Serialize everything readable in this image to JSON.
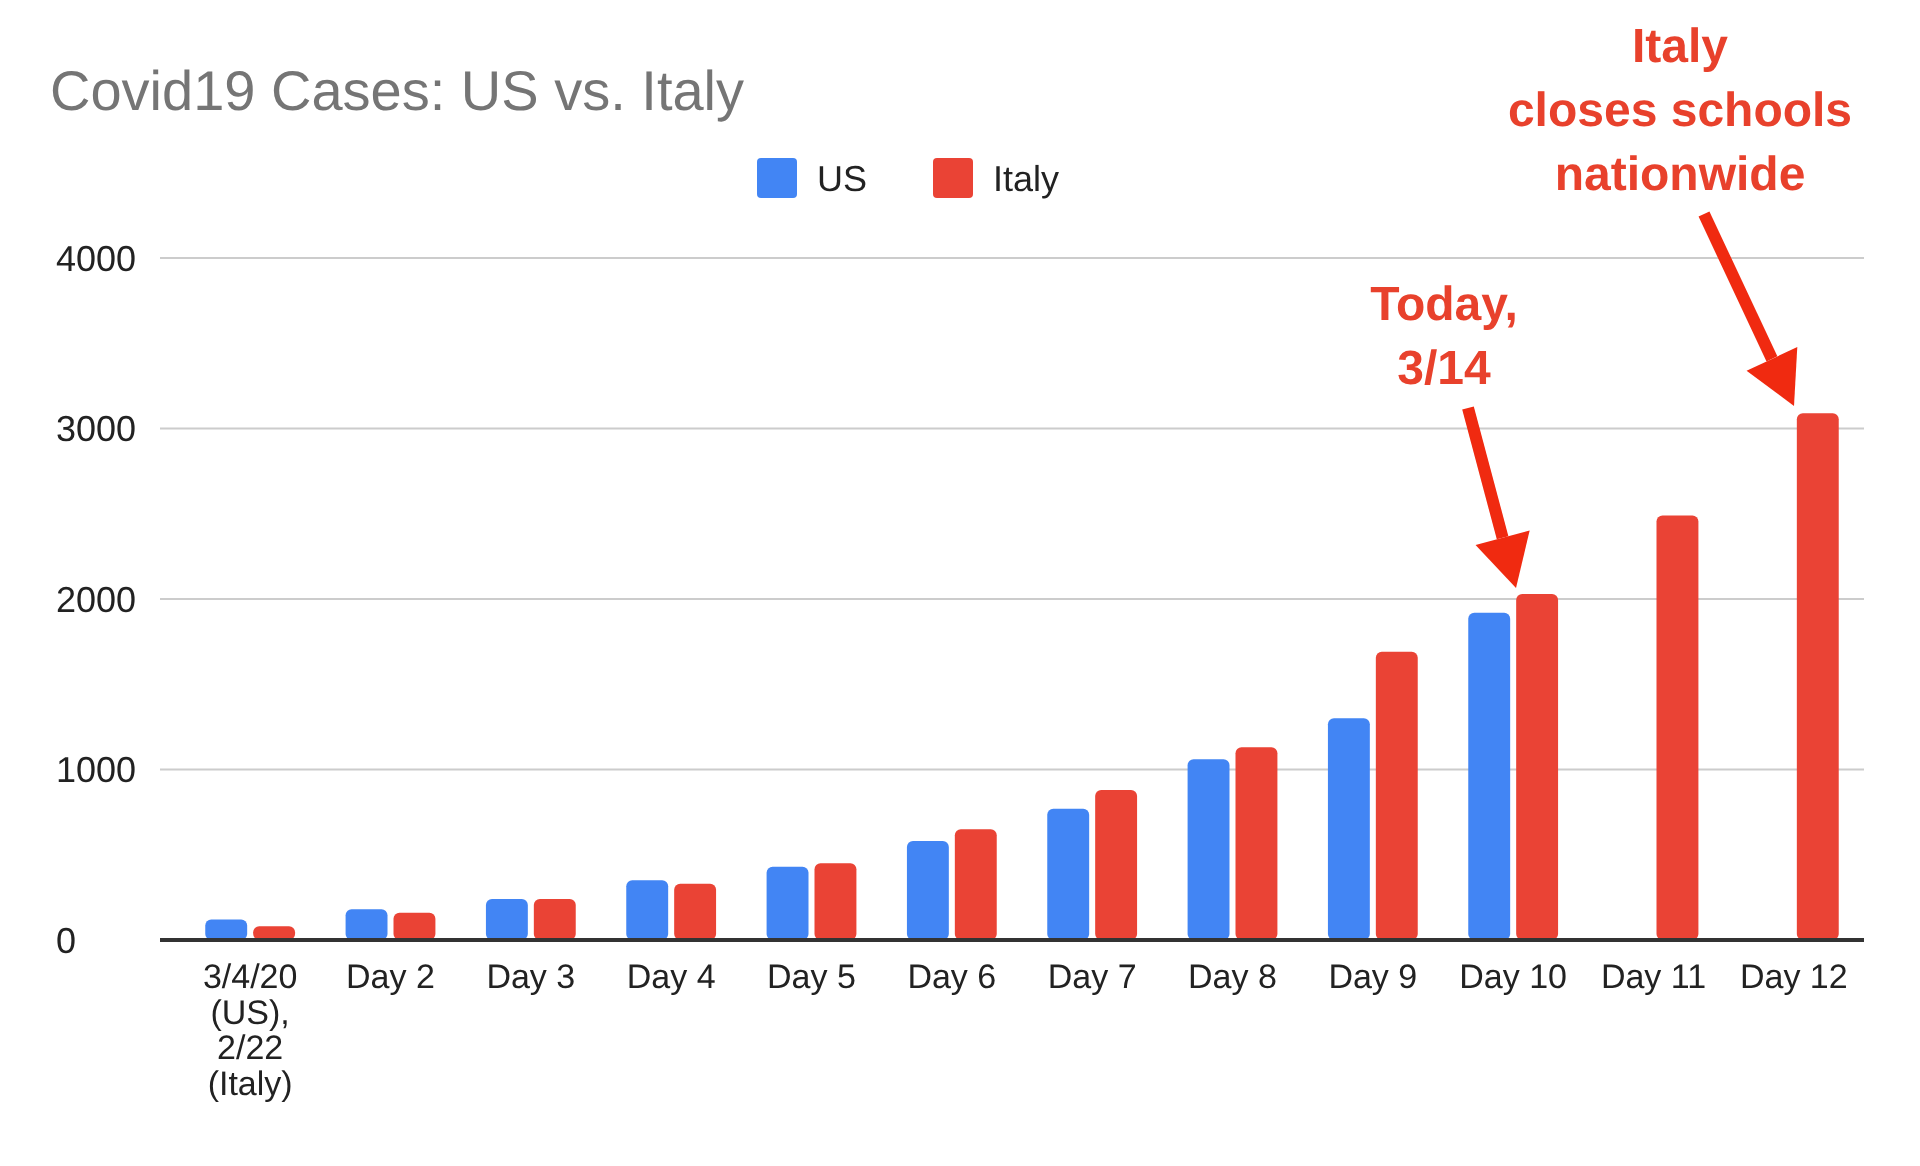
{
  "chart_data": {
    "type": "bar",
    "title": "Covid19 Cases: US vs. Italy",
    "categories": [
      "3/4/20 (US), 2/22 (Italy)",
      "Day 2",
      "Day 3",
      "Day 4",
      "Day 5",
      "Day 6",
      "Day 7",
      "Day 8",
      "Day 9",
      "Day 10",
      "Day 11",
      "Day 12"
    ],
    "series": [
      {
        "name": "US",
        "color": "#4285f4",
        "values": [
          120,
          180,
          240,
          350,
          430,
          580,
          770,
          1060,
          1300,
          1920,
          null,
          null
        ]
      },
      {
        "name": "Italy",
        "color": "#ea4335",
        "values": [
          80,
          160,
          240,
          330,
          450,
          650,
          880,
          1130,
          1690,
          2030,
          2490,
          3090
        ]
      }
    ],
    "ylim": [
      0,
      4000
    ],
    "yticks": [
      0,
      1000,
      2000,
      3000,
      4000
    ],
    "grid": "y",
    "legend": "top",
    "annotations": [
      "Today,\n3/14",
      "Italy\ncloses schools\nnationwide"
    ]
  }
}
